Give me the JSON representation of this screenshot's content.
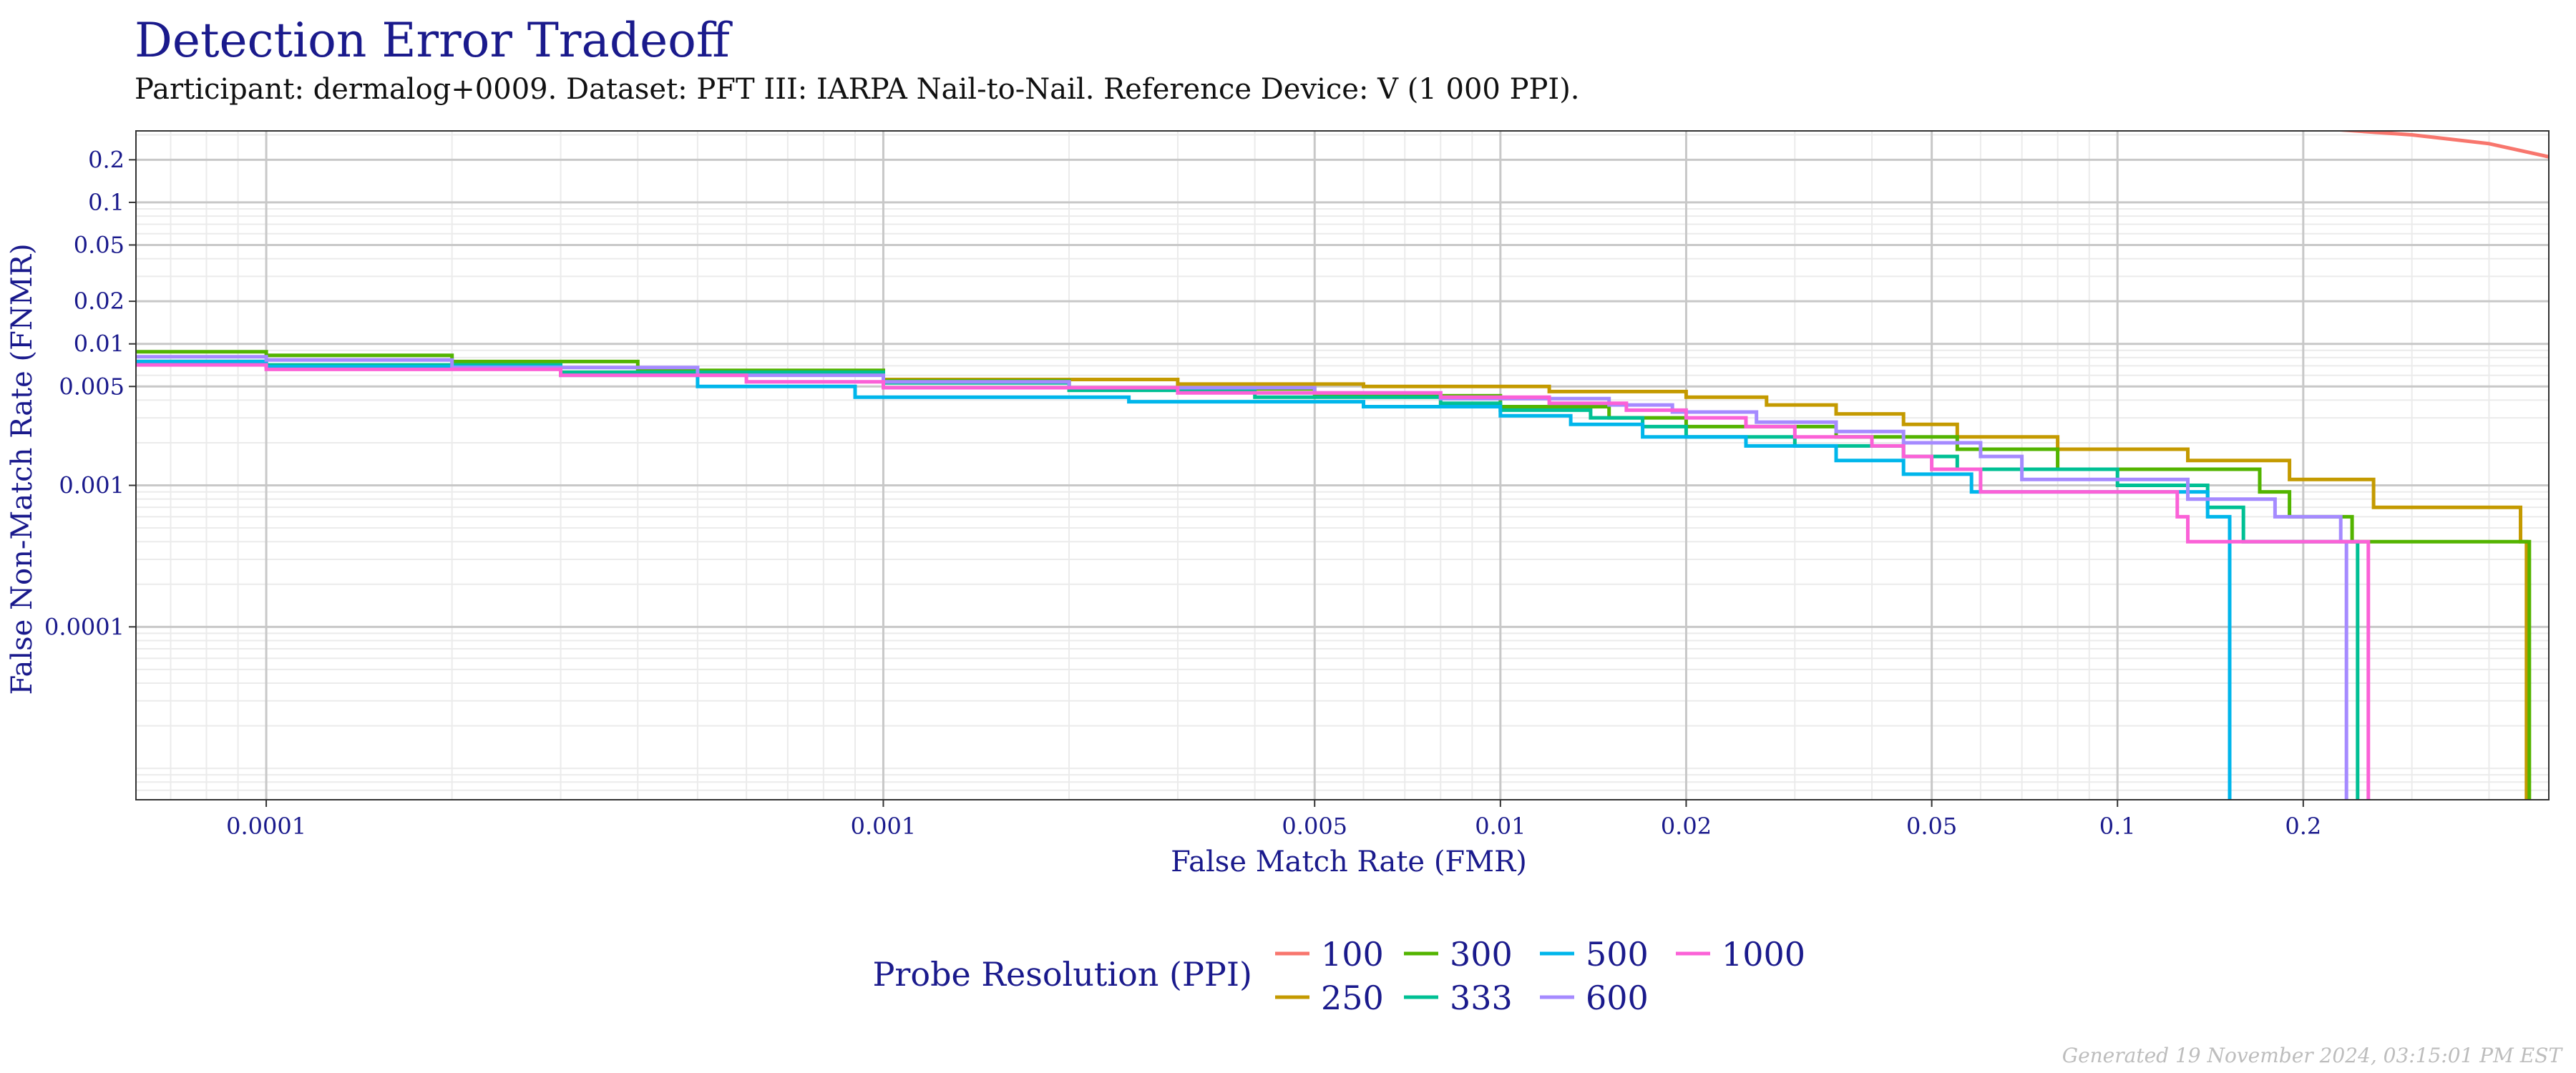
{
  "header": {
    "title": "Detection Error Tradeoff",
    "subtitle": "Participant: dermalog+0009. Dataset: PFT III: IARPA Nail-to-Nail. Reference Device: V (1 000 PPI)."
  },
  "footer": {
    "generated": "Generated 19 November 2024, 03:15:01 PM EST"
  },
  "colors": {
    "axis_text": "#1a1a8c",
    "grid_major": "#c8c8c8",
    "grid_minor": "#ebebeb"
  },
  "chart_data": {
    "type": "line",
    "title": "Detection Error Tradeoff",
    "xlabel": "False Match Rate (FMR)",
    "ylabel": "False Non-Match Rate (FNMR)",
    "xscale": "log",
    "yscale": "log",
    "xlim": [
      6.15e-05,
      0.5
    ],
    "ylim": [
      6e-06,
      0.32
    ],
    "xticks": [
      0.0001,
      0.001,
      0.005,
      0.01,
      0.02,
      0.05,
      0.1,
      0.2
    ],
    "xtick_labels": [
      "0.0001",
      "0.001",
      "0.005",
      "0.01",
      "0.02",
      "0.05",
      "0.1",
      "0.2"
    ],
    "yticks": [
      0.0001,
      0.001,
      0.005,
      0.01,
      0.02,
      0.05,
      0.1,
      0.2
    ],
    "ytick_labels": [
      "0.0001",
      "0.001",
      "0.005",
      "0.01",
      "0.02",
      "0.05",
      "0.1",
      "0.2"
    ],
    "grid": true,
    "legend": {
      "title": "Probe Resolution (PPI)",
      "position": "bottom"
    },
    "series": [
      {
        "name": "100",
        "color": "#F8766D",
        "points": [
          [
            0.22,
            0.33
          ],
          [
            0.3,
            0.3
          ],
          [
            0.4,
            0.26
          ],
          [
            0.5,
            0.21
          ]
        ]
      },
      {
        "name": "250",
        "color": "#C49A00",
        "points": [
          [
            6.15e-05,
            0.0075
          ],
          [
            0.0001,
            0.007
          ],
          [
            0.0003,
            0.0063
          ],
          [
            0.001,
            0.0056
          ],
          [
            0.003,
            0.0052
          ],
          [
            0.006,
            0.005
          ],
          [
            0.012,
            0.0046
          ],
          [
            0.02,
            0.0042
          ],
          [
            0.027,
            0.0037
          ],
          [
            0.035,
            0.0032
          ],
          [
            0.045,
            0.0027
          ],
          [
            0.055,
            0.0022
          ],
          [
            0.08,
            0.0018
          ],
          [
            0.13,
            0.0015
          ],
          [
            0.19,
            0.0011
          ],
          [
            0.26,
            0.0007
          ],
          [
            0.45,
            0.0004
          ],
          [
            0.46,
            6e-06
          ]
        ]
      },
      {
        "name": "300",
        "color": "#53B400",
        "points": [
          [
            6.15e-05,
            0.0088
          ],
          [
            0.0001,
            0.0083
          ],
          [
            0.0002,
            0.0075
          ],
          [
            0.0004,
            0.0065
          ],
          [
            0.001,
            0.0055
          ],
          [
            0.002,
            0.0048
          ],
          [
            0.005,
            0.0043
          ],
          [
            0.01,
            0.0036
          ],
          [
            0.015,
            0.003
          ],
          [
            0.02,
            0.0026
          ],
          [
            0.035,
            0.0022
          ],
          [
            0.055,
            0.0018
          ],
          [
            0.08,
            0.0013
          ],
          [
            0.17,
            0.0009
          ],
          [
            0.19,
            0.0006
          ],
          [
            0.24,
            0.0004
          ],
          [
            0.46,
            0.0004
          ],
          [
            0.465,
            6e-06
          ]
        ]
      },
      {
        "name": "333",
        "color": "#00C094",
        "points": [
          [
            6.15e-05,
            0.0075
          ],
          [
            0.0001,
            0.0071
          ],
          [
            0.0003,
            0.0063
          ],
          [
            0.001,
            0.0053
          ],
          [
            0.002,
            0.0047
          ],
          [
            0.004,
            0.0042
          ],
          [
            0.008,
            0.0038
          ],
          [
            0.01,
            0.0034
          ],
          [
            0.014,
            0.003
          ],
          [
            0.017,
            0.0026
          ],
          [
            0.02,
            0.0022
          ],
          [
            0.03,
            0.0019
          ],
          [
            0.045,
            0.0016
          ],
          [
            0.055,
            0.0013
          ],
          [
            0.1,
            0.001
          ],
          [
            0.14,
            0.0007
          ],
          [
            0.16,
            0.0004
          ],
          [
            0.24,
            0.0004
          ],
          [
            0.245,
            6e-06
          ]
        ]
      },
      {
        "name": "500",
        "color": "#00B6EB",
        "points": [
          [
            6.15e-05,
            0.0075
          ],
          [
            0.0001,
            0.0069
          ],
          [
            0.0003,
            0.006
          ],
          [
            0.0005,
            0.005
          ],
          [
            0.0009,
            0.0042
          ],
          [
            0.0025,
            0.0039
          ],
          [
            0.006,
            0.0036
          ],
          [
            0.01,
            0.0031
          ],
          [
            0.013,
            0.0027
          ],
          [
            0.017,
            0.0022
          ],
          [
            0.025,
            0.0019
          ],
          [
            0.035,
            0.0015
          ],
          [
            0.045,
            0.0012
          ],
          [
            0.058,
            0.0009
          ],
          [
            0.13,
            0.0009
          ],
          [
            0.14,
            0.0006
          ],
          [
            0.15,
            0.0006
          ],
          [
            0.152,
            6e-06
          ]
        ]
      },
      {
        "name": "600",
        "color": "#A58AFF",
        "points": [
          [
            6.15e-05,
            0.0081
          ],
          [
            0.0001,
            0.0077
          ],
          [
            0.0002,
            0.0068
          ],
          [
            0.0005,
            0.006
          ],
          [
            0.001,
            0.0054
          ],
          [
            0.002,
            0.0049
          ],
          [
            0.005,
            0.0045
          ],
          [
            0.008,
            0.0041
          ],
          [
            0.015,
            0.0037
          ],
          [
            0.019,
            0.0033
          ],
          [
            0.026,
            0.0028
          ],
          [
            0.035,
            0.0024
          ],
          [
            0.045,
            0.002
          ],
          [
            0.06,
            0.0016
          ],
          [
            0.07,
            0.0011
          ],
          [
            0.12,
            0.0011
          ],
          [
            0.13,
            0.0008
          ],
          [
            0.18,
            0.0006
          ],
          [
            0.23,
            0.0004
          ],
          [
            0.235,
            6e-06
          ]
        ]
      },
      {
        "name": "1000",
        "color": "#FB61D7",
        "points": [
          [
            6.15e-05,
            0.0071
          ],
          [
            0.0001,
            0.0066
          ],
          [
            0.0003,
            0.006
          ],
          [
            0.0006,
            0.0054
          ],
          [
            0.001,
            0.0049
          ],
          [
            0.003,
            0.0045
          ],
          [
            0.008,
            0.0042
          ],
          [
            0.012,
            0.0038
          ],
          [
            0.016,
            0.0034
          ],
          [
            0.02,
            0.003
          ],
          [
            0.025,
            0.0026
          ],
          [
            0.03,
            0.0022
          ],
          [
            0.04,
            0.0019
          ],
          [
            0.045,
            0.0016
          ],
          [
            0.05,
            0.0013
          ],
          [
            0.06,
            0.0009
          ],
          [
            0.12,
            0.0009
          ],
          [
            0.125,
            0.0006
          ],
          [
            0.13,
            0.0004
          ],
          [
            0.25,
            0.0004
          ],
          [
            0.255,
            6e-06
          ]
        ]
      }
    ]
  }
}
